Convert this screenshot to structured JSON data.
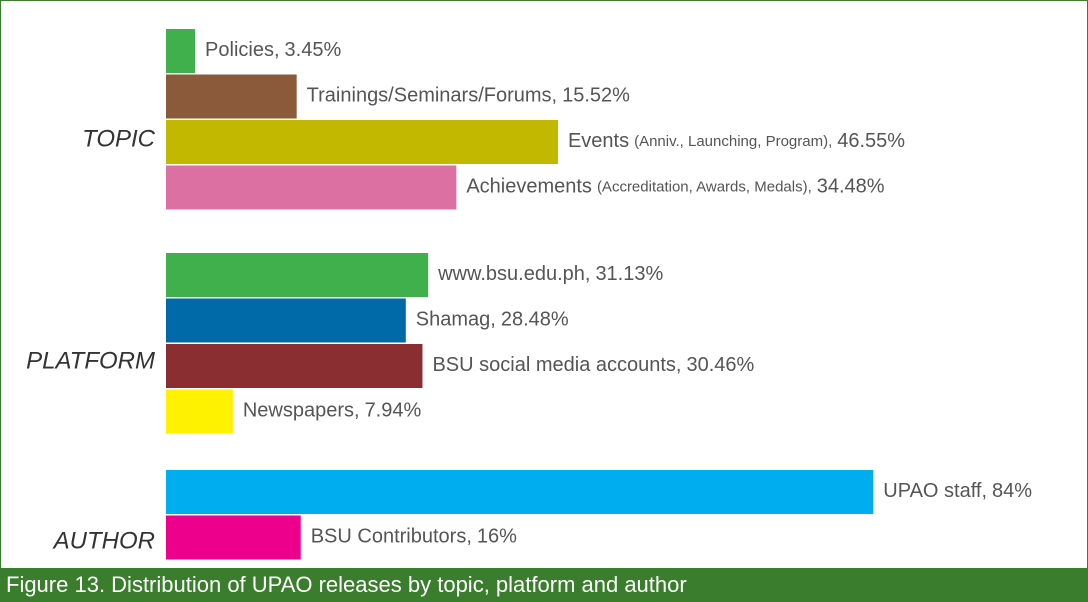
{
  "chart_data": {
    "type": "bar",
    "orientation": "horizontal",
    "caption": "Figure 13. Distribution of UPAO releases by topic, platform and author",
    "xlim": [
      0,
      100
    ],
    "groups": [
      {
        "name": "TOPIC",
        "bars": [
          {
            "name": "Policies,",
            "value": 3.45,
            "value_label": "3.45%",
            "color": "#3fb04b"
          },
          {
            "name": "Trainings/Seminars/Forums,",
            "value": 15.52,
            "value_label": "15.52%",
            "color": "#8b5a3a"
          },
          {
            "name": "Events",
            "detail": "(Anniv., Launching, Program),",
            "value": 46.55,
            "value_label": "46.55%",
            "color": "#c2b800"
          },
          {
            "name": "Achievements",
            "detail": "(Accreditation, Awards, Medals),",
            "value": 34.48,
            "value_label": "34.48%",
            "color": "#dc70a2"
          }
        ]
      },
      {
        "name": "PLATFORM",
        "bars": [
          {
            "name": "www.bsu.edu.ph,",
            "value": 31.13,
            "value_label": "31.13%",
            "color": "#3fb04b"
          },
          {
            "name": "Shamag,",
            "value": 28.48,
            "value_label": "28.48%",
            "color": "#0069a8"
          },
          {
            "name": "BSU social media accounts,",
            "value": 30.46,
            "value_label": "30.46%",
            "color": "#8b2e32"
          },
          {
            "name": "Newspapers,",
            "value": 7.94,
            "value_label": "7.94%",
            "color": "#fff200"
          }
        ]
      },
      {
        "name": "AUTHOR",
        "bars": [
          {
            "name": "UPAO staff,",
            "value": 84,
            "value_label": "84%",
            "color": "#00aeef"
          },
          {
            "name": "BSU Contributors,",
            "value": 16,
            "value_label": "16%",
            "color": "#ec008c"
          }
        ]
      }
    ]
  }
}
